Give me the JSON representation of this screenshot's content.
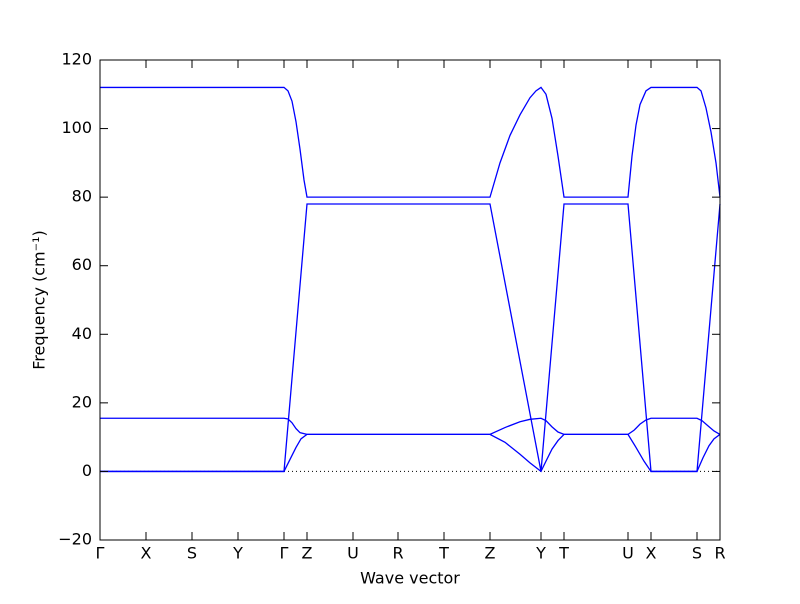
{
  "chart_data": {
    "type": "line",
    "xlabel": "Wave vector",
    "ylabel": "Frequency (cm⁻¹)",
    "xlim": [
      0,
      620
    ],
    "xticks": [
      {
        "value": 0,
        "label": "Γ"
      },
      {
        "value": 46,
        "label": "X"
      },
      {
        "value": 92,
        "label": "S"
      },
      {
        "value": 138,
        "label": "Y"
      },
      {
        "value": 184,
        "label": "Γ"
      },
      {
        "value": 207,
        "label": "Z"
      },
      {
        "value": 253,
        "label": "U"
      },
      {
        "value": 298,
        "label": "R"
      },
      {
        "value": 344,
        "label": "T"
      },
      {
        "value": 390,
        "label": "Z"
      },
      {
        "value": 441,
        "label": "Y"
      },
      {
        "value": 464,
        "label": "T"
      },
      {
        "value": 528,
        "label": "U"
      },
      {
        "value": 551,
        "label": "X"
      },
      {
        "value": 597,
        "label": "S"
      },
      {
        "value": 620,
        "label": "R"
      }
    ],
    "ylim": [
      -20,
      120
    ],
    "yticks": [
      {
        "value": -20,
        "label": "−20"
      },
      0,
      20,
      40,
      60,
      80,
      100,
      120
    ],
    "zero_line": true,
    "series": [
      {
        "color": "#0000ff",
        "x": [
          0,
          184,
          188,
          192,
          196,
          200,
          204,
          207,
          390,
          400,
          410,
          420,
          430,
          436,
          441,
          446,
          452,
          458,
          464,
          528,
          532,
          536,
          540,
          546,
          551,
          597,
          601,
          606,
          611,
          616,
          620
        ],
        "values": [
          112,
          112,
          111,
          108,
          102,
          94,
          85,
          80,
          80,
          90,
          98,
          104,
          109,
          111,
          112,
          110,
          103,
          92,
          80,
          80,
          92,
          101,
          107,
          111,
          112,
          112,
          111,
          106,
          99,
          90,
          80
        ]
      },
      {
        "color": "#0000ff",
        "x": [
          0,
          184,
          207,
          390,
          441,
          464,
          528,
          551,
          597,
          620
        ],
        "values": [
          0,
          0,
          78,
          78,
          0,
          78,
          78,
          0,
          0,
          78
        ]
      },
      {
        "color": "#0000ff",
        "x": [
          0,
          184,
          188,
          192,
          196,
          200,
          207,
          390,
          405,
          420,
          430,
          441,
          446,
          452,
          458,
          464,
          528,
          534,
          540,
          546,
          551,
          597,
          602,
          608,
          614,
          620
        ],
        "values": [
          15.5,
          15.5,
          15.3,
          14.2,
          12.5,
          11.3,
          10.8,
          10.8,
          12.8,
          14.5,
          15.2,
          15.5,
          14.8,
          13,
          11.5,
          10.8,
          10.8,
          12,
          13.8,
          15,
          15.5,
          15.5,
          14.8,
          13.3,
          11.8,
          10.8
        ]
      },
      {
        "color": "#0000ff",
        "x": [
          0,
          184,
          190,
          196,
          201,
          207,
          390,
          405,
          420,
          430,
          441,
          446,
          452,
          458,
          464,
          528,
          536,
          544,
          551,
          597,
          603,
          609,
          614,
          620
        ],
        "values": [
          0,
          0,
          3.5,
          7,
          9.5,
          10.8,
          10.8,
          8.5,
          5,
          2.5,
          0,
          3,
          6.5,
          9,
          10.8,
          10.8,
          7,
          3,
          0,
          0,
          4,
          7.5,
          9.5,
          10.8
        ]
      }
    ]
  }
}
